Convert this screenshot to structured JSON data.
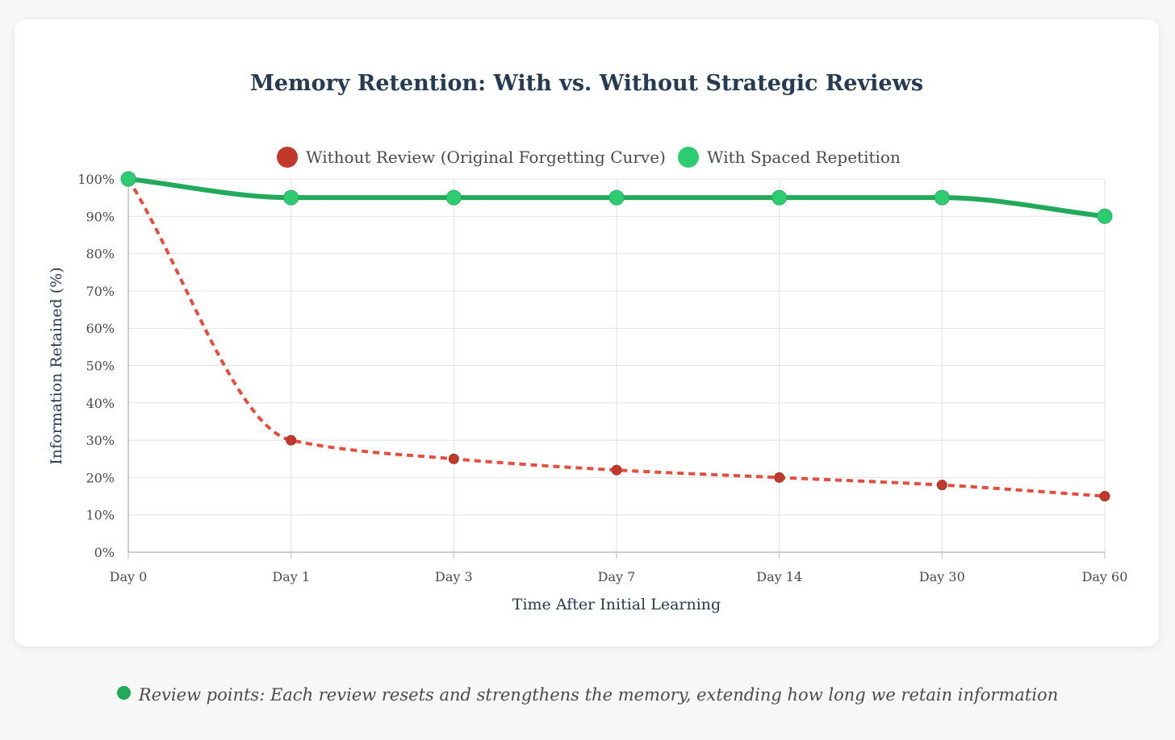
{
  "chart_data": {
    "type": "line",
    "title": "Memory Retention: With vs. Without Strategic Reviews",
    "xlabel": "Time After Initial Learning",
    "ylabel": "Information Retained (%)",
    "categories": [
      "Day 0",
      "Day 1",
      "Day 3",
      "Day 7",
      "Day 14",
      "Day 30",
      "Day 60"
    ],
    "ylim": [
      0,
      100
    ],
    "yticks": [
      0,
      10,
      20,
      30,
      40,
      50,
      60,
      70,
      80,
      90,
      100
    ],
    "ytick_suffix": "%",
    "grid": true,
    "legend_position": "top-center",
    "series": [
      {
        "name": "Without Review (Original Forgetting Curve)",
        "values": [
          100,
          30,
          25,
          22,
          20,
          18,
          15
        ],
        "color": "#e74c3c",
        "marker_color": "#c0392b",
        "style": "dotted"
      },
      {
        "name": "With Spaced Repetition",
        "values": [
          100,
          95,
          95,
          95,
          95,
          95,
          90
        ],
        "color": "#22a95a",
        "marker_color": "#2ecc71",
        "style": "solid"
      }
    ]
  },
  "footnote": {
    "text": "Review points: Each review resets and strengthens the memory, extending how long we retain information",
    "dot_color": "#22a95a"
  }
}
